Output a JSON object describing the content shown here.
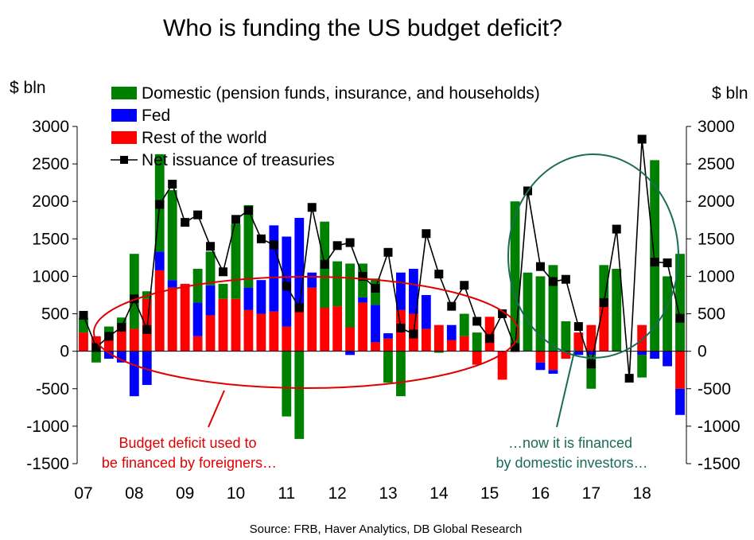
{
  "chart_data": {
    "type": "bar",
    "title": "Who is funding the US budget deficit?",
    "ylabel_left": "$ bln",
    "ylabel_right": "$ bln",
    "ylim": [
      -1500,
      3000
    ],
    "yticks": [
      3000,
      2500,
      2000,
      1500,
      1000,
      500,
      0,
      -500,
      -1000,
      -1500
    ],
    "xticks": [
      "07",
      "08",
      "09",
      "10",
      "11",
      "12",
      "13",
      "14",
      "15",
      "16",
      "17",
      "18"
    ],
    "legend": [
      "Domestic (pension funds, insurance, and households)",
      "Fed",
      "Rest of the world",
      "Net issuance of treasuries"
    ],
    "colors": {
      "domestic": "#008000",
      "fed": "#0000ff",
      "row": "#ff0000",
      "net": "#000000",
      "red_ellipse": "#e00000",
      "green_ellipse": "#1a6b5a"
    },
    "x": [
      2007.0,
      2007.25,
      2007.5,
      2007.75,
      2008.0,
      2008.25,
      2008.5,
      2008.75,
      2009.0,
      2009.25,
      2009.5,
      2009.75,
      2010.0,
      2010.25,
      2010.5,
      2010.75,
      2011.0,
      2011.25,
      2011.5,
      2011.75,
      2012.0,
      2012.25,
      2012.5,
      2012.75,
      2013.0,
      2013.25,
      2013.5,
      2013.75,
      2014.0,
      2014.25,
      2014.5,
      2014.75,
      2015.0,
      2015.25,
      2015.5,
      2015.75,
      2016.0,
      2016.25,
      2016.5,
      2016.75,
      2017.0,
      2017.25,
      2017.5,
      2017.75,
      2018.0,
      2018.25,
      2018.5,
      2018.75
    ],
    "series": [
      {
        "name": "Domestic (pension funds, insurance, and households)",
        "values": [
          200,
          -150,
          130,
          100,
          1000,
          100,
          1300,
          1200,
          0,
          450,
          450,
          200,
          1000,
          1100,
          0,
          0,
          -870,
          -1170,
          0,
          1150,
          600,
          850,
          450,
          350,
          -420,
          -600,
          0,
          0,
          -20,
          0,
          300,
          250,
          0,
          0,
          2000,
          1050,
          1000,
          1150,
          400,
          0,
          -450,
          450,
          1100,
          0,
          -300,
          2550,
          1000,
          1300
        ]
      },
      {
        "name": "Fed",
        "values": [
          0,
          0,
          -100,
          -150,
          -600,
          -450,
          250,
          100,
          0,
          450,
          400,
          0,
          0,
          300,
          450,
          1150,
          1200,
          1200,
          200,
          0,
          0,
          -50,
          70,
          500,
          70,
          500,
          600,
          450,
          0,
          200,
          0,
          0,
          0,
          0,
          0,
          0,
          -100,
          -50,
          0,
          -50,
          -50,
          0,
          0,
          0,
          -50,
          -100,
          -200,
          -350
        ]
      },
      {
        "name": "Rest of the world",
        "values": [
          250,
          200,
          200,
          350,
          300,
          700,
          1080,
          850,
          900,
          200,
          480,
          700,
          700,
          550,
          500,
          530,
          330,
          580,
          850,
          580,
          600,
          320,
          650,
          120,
          170,
          550,
          500,
          300,
          350,
          150,
          200,
          -180,
          460,
          -380,
          0,
          0,
          -150,
          -250,
          -100,
          250,
          350,
          700,
          0,
          0,
          350,
          0,
          0,
          -500
        ]
      },
      {
        "name": "Net issuance of treasuries",
        "values": [
          480,
          50,
          200,
          320,
          700,
          290,
          1960,
          2230,
          1720,
          1820,
          1400,
          1060,
          1760,
          1880,
          1500,
          1420,
          870,
          580,
          1920,
          1160,
          1410,
          1450,
          1000,
          840,
          1320,
          310,
          230,
          1570,
          1030,
          600,
          880,
          400,
          170,
          500,
          50,
          2140,
          1130,
          930,
          960,
          330,
          -170,
          650,
          1630,
          -360,
          2830,
          1190,
          1180,
          440
        ]
      }
    ],
    "annotations": [
      "Budget deficit used to",
      "be financed by foreigners…",
      "…now it is financed",
      "by domestic investors…"
    ],
    "source": "Source: FRB, Haver Analytics, DB Global  Research"
  }
}
